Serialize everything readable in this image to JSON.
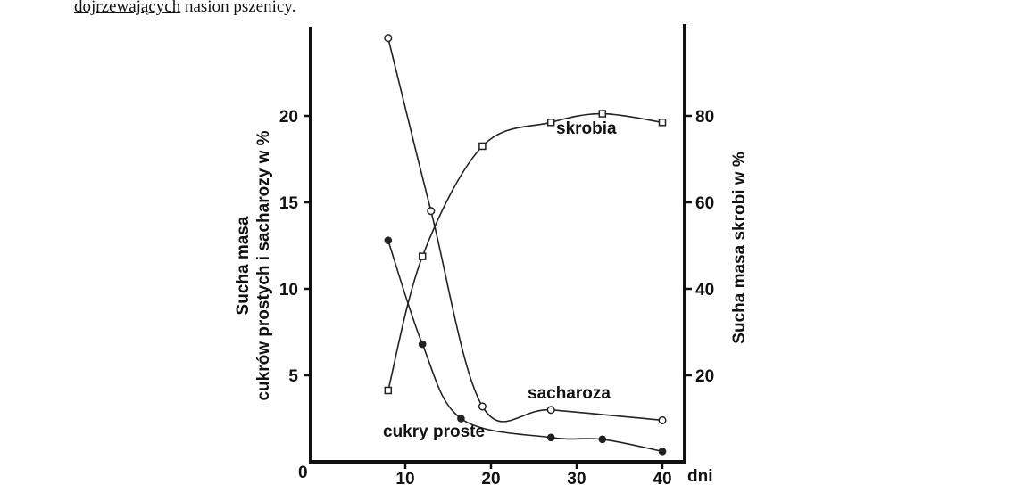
{
  "caption": {
    "underlined": "dojrzewających",
    "rest": " nasion pszenicy."
  },
  "chart_data": {
    "type": "line",
    "x_unit_label": "dni",
    "x_ticks": [
      10,
      20,
      30,
      40
    ],
    "origin_label": "0",
    "left_axis": {
      "label_line1": "Sucha masa",
      "label_line2": "cukrów prostych i sacharozy w %",
      "ticks": [
        5,
        10,
        15,
        20
      ],
      "range": [
        0,
        25
      ]
    },
    "right_axis": {
      "label": "Sucha masa skrobi w %",
      "ticks": [
        20,
        40,
        60,
        80
      ],
      "range": [
        0,
        100
      ]
    },
    "series": [
      {
        "name": "skrobia",
        "axis": "right",
        "marker": "square",
        "points": [
          [
            8,
            16.5
          ],
          [
            12,
            47.5
          ],
          [
            19,
            73
          ],
          [
            27,
            78.5
          ],
          [
            33,
            80.5
          ],
          [
            40,
            78.5
          ]
        ]
      },
      {
        "name": "sacharoza",
        "axis": "left",
        "marker": "open-circle",
        "points": [
          [
            8,
            24.5
          ],
          [
            13,
            14.5
          ],
          [
            19,
            3.2
          ],
          [
            27,
            3.0
          ],
          [
            40,
            2.4
          ]
        ]
      },
      {
        "name": "cukry proste",
        "axis": "left",
        "marker": "filled-circle",
        "points": [
          [
            8,
            12.8
          ],
          [
            12,
            6.8
          ],
          [
            16.5,
            2.5
          ],
          [
            27,
            1.4
          ],
          [
            33,
            1.3
          ],
          [
            40,
            0.6
          ]
        ]
      }
    ]
  }
}
